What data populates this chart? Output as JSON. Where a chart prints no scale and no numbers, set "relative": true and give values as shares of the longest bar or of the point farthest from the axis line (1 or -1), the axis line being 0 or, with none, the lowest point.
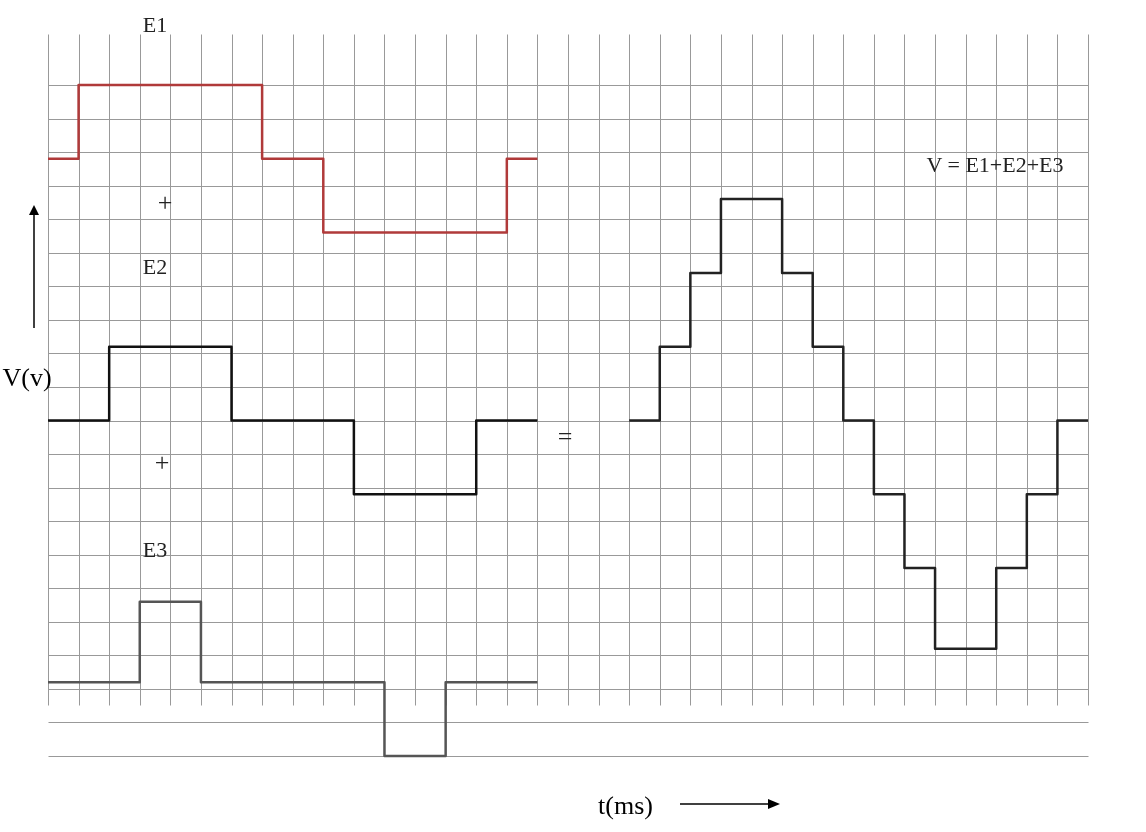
{
  "chart_data": {
    "type": "step",
    "relative": true,
    "xlabel": "t(ms)",
    "ylabel": "V(v)",
    "grid": true,
    "tick_labels": false,
    "categories": [
      null,
      null,
      null,
      null,
      null,
      null,
      null,
      null,
      null,
      null,
      null,
      null,
      null,
      null,
      null,
      null,
      null,
      null,
      null,
      null,
      null,
      null,
      null,
      null,
      null,
      null,
      null,
      null,
      null,
      null,
      null,
      null,
      null,
      null,
      null
    ],
    "series": [
      {
        "color": "#b03a3a",
        "values": [
          0.89,
          1,
          1,
          1,
          1,
          1,
          1,
          0.89,
          0.89,
          0.78,
          0.78,
          0.78,
          0.78,
          0.78,
          0.78,
          0.89,
          0.89,
          null,
          null,
          null,
          null,
          null,
          null,
          null,
          null,
          null,
          null,
          null,
          null,
          null,
          null,
          null,
          null,
          null,
          null
        ]
      },
      {
        "color": "#111111",
        "values": [
          0.5,
          0.5,
          0.61,
          0.61,
          0.61,
          0.61,
          0.5,
          0.5,
          0.5,
          0.5,
          0.39,
          0.39,
          0.39,
          0.39,
          0.5,
          0.5,
          0.5,
          null,
          null,
          null,
          null,
          null,
          null,
          null,
          null,
          null,
          null,
          null,
          null,
          null,
          null,
          null,
          null,
          null,
          null
        ]
      },
      {
        "color": "#555555",
        "values": [
          0.11,
          0.11,
          0.11,
          0.23,
          0.23,
          0.11,
          0.11,
          0.11,
          0.11,
          0.11,
          0.11,
          0,
          0,
          0.11,
          0.11,
          0.11,
          0.11,
          null,
          null,
          null,
          null,
          null,
          null,
          null,
          null,
          null,
          null,
          null,
          null,
          null,
          null,
          null,
          null,
          null,
          null
        ]
      },
      {
        "color": "#222222",
        "values": [
          null,
          null,
          null,
          null,
          null,
          null,
          null,
          null,
          null,
          null,
          null,
          null,
          null,
          null,
          null,
          null,
          null,
          null,
          null,
          0.5,
          0.61,
          0.72,
          0.83,
          0.83,
          0.72,
          0.61,
          0.5,
          0.39,
          0.28,
          0.16,
          0.16,
          0.28,
          0.39,
          0.5,
          0.5
        ]
      }
    ],
    "annotations": [
      "E1",
      "+",
      "E2",
      "+",
      "E3",
      "=",
      "V = E1+E2+E3"
    ]
  }
}
